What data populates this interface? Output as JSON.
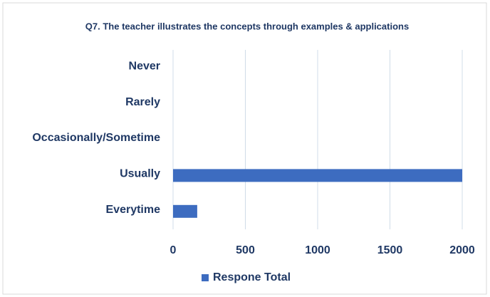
{
  "chart_data": {
    "type": "bar",
    "orientation": "horizontal",
    "title": "Q7. The teacher illustrates the concepts through examples & applications",
    "categories": [
      "Never",
      "Rarely",
      "Occasionally/Sometime",
      "Usually",
      "Everytime"
    ],
    "series": [
      {
        "name": "Respone Total",
        "color": "#3d6cc0",
        "values": [
          0,
          0,
          0,
          2000,
          167
        ]
      }
    ],
    "xlim": [
      0,
      2000
    ],
    "xticks": [
      0,
      500,
      1000,
      1500,
      2000
    ],
    "grid": true,
    "legend": "bottom"
  }
}
